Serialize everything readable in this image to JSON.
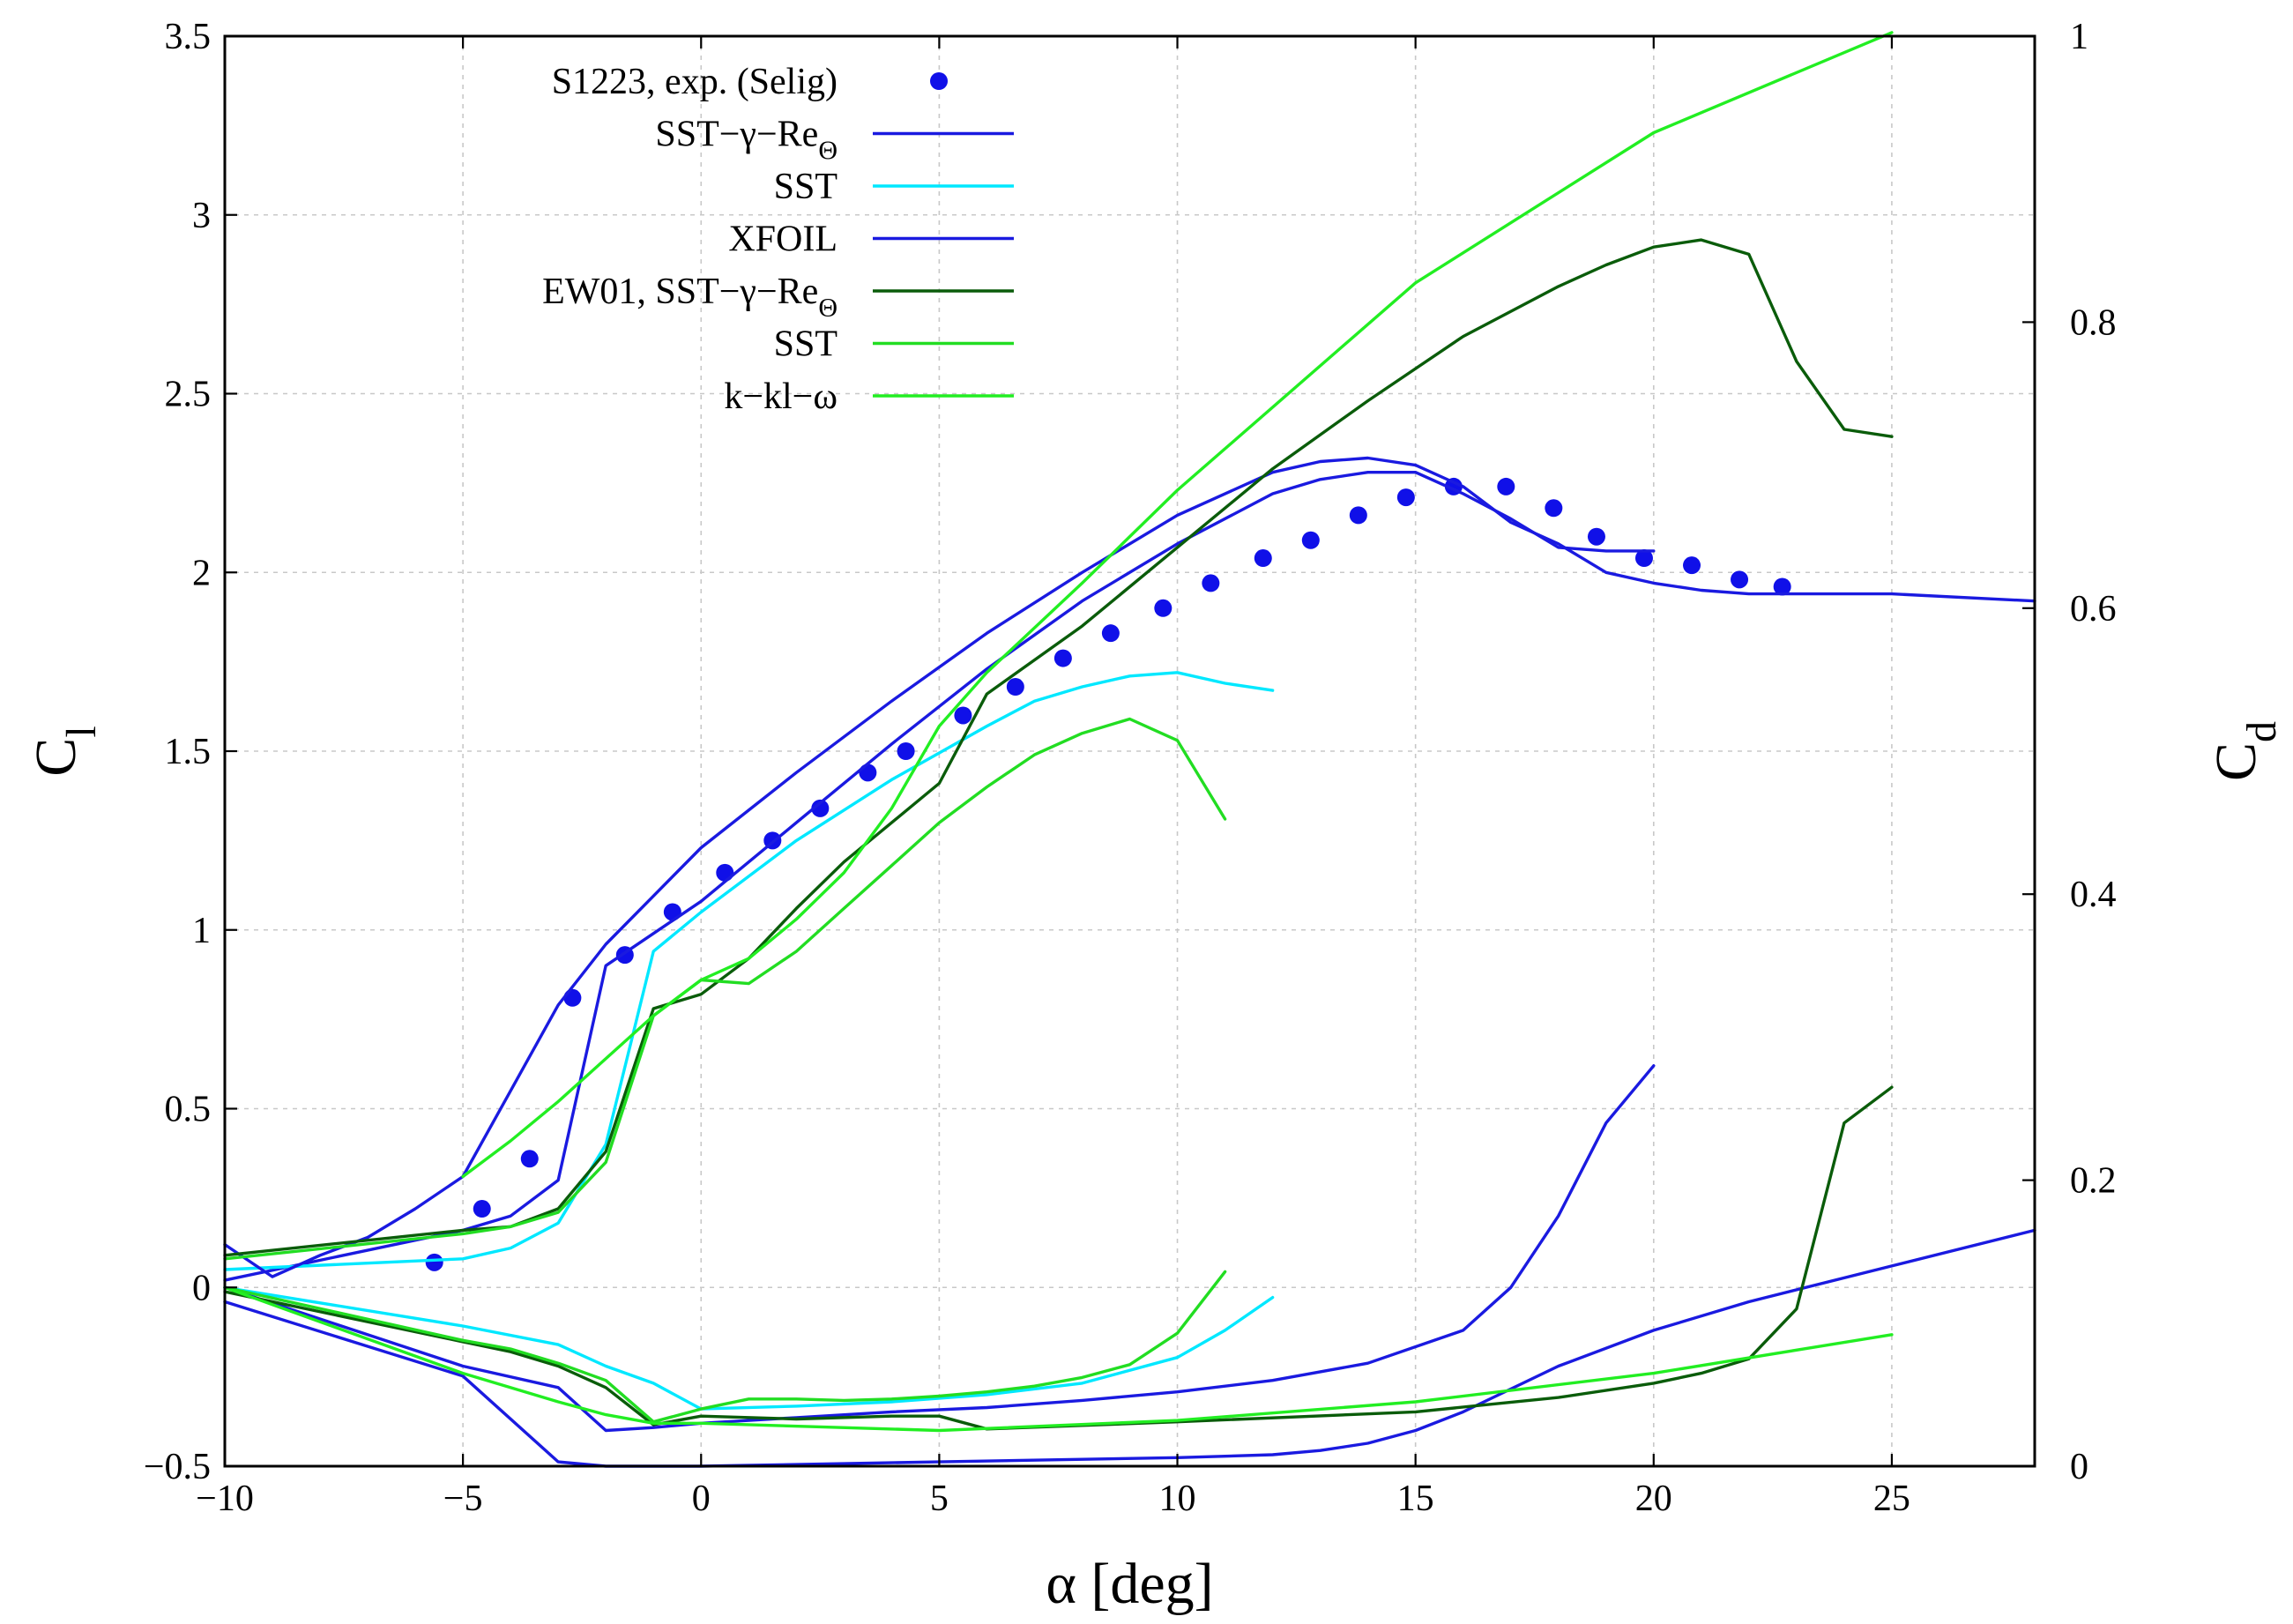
{
  "chart_data": {
    "type": "line",
    "title": "",
    "xlabel": "α [deg]",
    "ylabel": "C",
    "ylabel_sub": "l",
    "y2label": "C",
    "y2label_sub": "d",
    "xlim": [
      -10,
      28
    ],
    "ylim": [
      -0.5,
      3.5
    ],
    "y2lim": [
      0,
      1
    ],
    "grid": true,
    "legend_position": "top-left",
    "x_ticks": [
      "−10",
      "−5",
      "0",
      "5",
      "10",
      "15",
      "20",
      "25"
    ],
    "y_ticks": [
      "−0.5",
      "0",
      "0.5",
      "1",
      "1.5",
      "2",
      "2.5",
      "3",
      "3.5"
    ],
    "y2_ticks": [
      "0",
      "0.2",
      "0.4",
      "0.6",
      "0.8",
      "1"
    ],
    "legend": [
      {
        "key": "exp",
        "label": "S1223, exp. (Selig)",
        "sub": "",
        "color": "#1010e8",
        "marker": "circle"
      },
      {
        "key": "s1223_sstg",
        "label": "SST−γ−Re",
        "sub": "Θ",
        "color": "#1a1ae0",
        "marker": "line"
      },
      {
        "key": "s1223_sst",
        "label": "SST",
        "sub": "",
        "color": "#00e8ff",
        "marker": "line"
      },
      {
        "key": "xfoil",
        "label": "XFOIL",
        "sub": "",
        "color": "#1a1ae0",
        "marker": "line"
      },
      {
        "key": "ew_sstg",
        "label": "EW01, SST−γ−Re",
        "sub": "Θ",
        "color": "#0a5c0a",
        "marker": "line"
      },
      {
        "key": "ew_sst",
        "label": "SST",
        "sub": "",
        "color": "#22dd22",
        "marker": "line"
      },
      {
        "key": "ew_kkl",
        "label": "k−kl−ω",
        "sub": "",
        "color": "#22ee22",
        "marker": "line"
      }
    ],
    "series": [
      {
        "name": "S1223, exp. (Selig) — C_l",
        "axis": "left",
        "style": "points",
        "color": "#1010e8",
        "x": [
          -5.6,
          -4.6,
          -3.6,
          -2.7,
          -1.6,
          -0.6,
          0.5,
          1.5,
          2.5,
          3.5,
          4.3,
          5.5,
          6.6,
          7.6,
          8.6,
          9.7,
          10.7,
          11.8,
          12.8,
          13.8,
          14.8,
          15.8,
          16.9,
          17.9,
          18.8,
          19.8,
          20.8,
          21.8,
          22.7
        ],
        "values": [
          0.07,
          0.22,
          0.36,
          0.81,
          0.93,
          1.05,
          1.16,
          1.25,
          1.34,
          1.44,
          1.5,
          1.6,
          1.68,
          1.76,
          1.83,
          1.9,
          1.97,
          2.04,
          2.09,
          2.16,
          2.21,
          2.24,
          2.24,
          2.18,
          2.1,
          2.04,
          2.02,
          1.98,
          1.96
        ]
      },
      {
        "name": "S1223 SST−γ−ReΘ — C_l",
        "axis": "left",
        "style": "line",
        "color": "#1a1ae0",
        "x": [
          -10,
          -5,
          -4,
          -3,
          -2,
          0,
          2,
          4,
          6,
          8,
          10,
          12,
          13,
          14,
          15,
          16,
          17,
          18,
          19,
          20
        ],
        "values": [
          0.02,
          0.16,
          0.2,
          0.3,
          0.9,
          1.08,
          1.3,
          1.52,
          1.73,
          1.92,
          2.08,
          2.22,
          2.26,
          2.28,
          2.28,
          2.22,
          2.15,
          2.07,
          2.06,
          2.06
        ]
      },
      {
        "name": "S1223 SST — C_l",
        "axis": "left",
        "style": "line",
        "color": "#00e8ff",
        "x": [
          -10,
          -5,
          -4,
          -3,
          -2,
          -1,
          0,
          2,
          4,
          6,
          7,
          8,
          9,
          10,
          11,
          12
        ],
        "values": [
          0.05,
          0.08,
          0.11,
          0.18,
          0.4,
          0.94,
          1.05,
          1.25,
          1.42,
          1.57,
          1.64,
          1.68,
          1.71,
          1.72,
          1.69,
          1.67
        ]
      },
      {
        "name": "XFOIL — C_l",
        "axis": "left",
        "style": "line",
        "color": "#1a1ae0",
        "x": [
          -10,
          -9,
          -8,
          -7,
          -6,
          -5,
          -4,
          -3,
          -2,
          0,
          2,
          4,
          6,
          8,
          10,
          12,
          13,
          14,
          15,
          16,
          17,
          18,
          19,
          20,
          21,
          22,
          25,
          28
        ],
        "values": [
          0.12,
          0.03,
          0.09,
          0.14,
          0.22,
          0.31,
          0.55,
          0.79,
          0.96,
          1.23,
          1.44,
          1.64,
          1.83,
          2.0,
          2.16,
          2.28,
          2.31,
          2.32,
          2.3,
          2.24,
          2.14,
          2.08,
          2.0,
          1.97,
          1.95,
          1.94,
          1.94,
          1.92
        ]
      },
      {
        "name": "EW01 SST−γ−ReΘ — C_l",
        "axis": "left",
        "style": "line",
        "color": "#0a5c0a",
        "x": [
          -10,
          -5,
          -4,
          -3,
          -2,
          -1,
          0,
          1,
          2,
          3,
          4,
          5,
          6,
          8,
          10,
          12,
          14,
          16,
          18,
          19,
          20,
          21,
          22,
          23,
          24,
          25
        ],
        "values": [
          0.09,
          0.16,
          0.17,
          0.22,
          0.38,
          0.78,
          0.82,
          0.92,
          1.06,
          1.19,
          1.3,
          1.41,
          1.66,
          1.85,
          2.07,
          2.29,
          2.48,
          2.66,
          2.8,
          2.86,
          2.91,
          2.93,
          2.89,
          2.59,
          2.4,
          2.38
        ]
      },
      {
        "name": "EW01 SST — C_l",
        "axis": "left",
        "style": "line",
        "color": "#22dd22",
        "x": [
          -10,
          -5,
          -4,
          -3,
          -2,
          -1,
          0,
          1,
          2,
          3,
          4,
          5,
          6,
          7,
          8,
          9,
          10,
          11
        ],
        "values": [
          0.08,
          0.15,
          0.17,
          0.21,
          0.35,
          0.76,
          0.86,
          0.85,
          0.94,
          1.06,
          1.18,
          1.3,
          1.4,
          1.49,
          1.55,
          1.59,
          1.53,
          1.31
        ]
      },
      {
        "name": "EW01 k−kl−ω — C_l",
        "axis": "left",
        "style": "line",
        "color": "#22ee22",
        "x": [
          -5,
          -4,
          -3,
          -2,
          -1,
          0,
          1,
          2,
          3,
          4,
          5,
          6,
          8,
          10,
          15,
          20,
          25
        ],
        "values": [
          0.31,
          0.41,
          0.52,
          0.64,
          0.76,
          0.86,
          0.92,
          1.03,
          1.16,
          1.34,
          1.57,
          1.72,
          1.97,
          2.23,
          2.81,
          3.23,
          3.51
        ]
      },
      {
        "name": "S1223 SST−γ−ReΘ — C_d",
        "axis": "right",
        "style": "line",
        "color": "#1a1ae0",
        "x": [
          -10,
          -5,
          -3,
          -2,
          -1,
          0,
          2,
          4,
          6,
          8,
          10,
          12,
          14,
          16,
          17,
          18,
          19,
          20
        ],
        "values": [
          0.125,
          0.07,
          0.055,
          0.025,
          0.027,
          0.03,
          0.034,
          0.038,
          0.041,
          0.046,
          0.052,
          0.06,
          0.072,
          0.095,
          0.125,
          0.175,
          0.24,
          0.28
        ]
      },
      {
        "name": "S1223 SST — C_d",
        "axis": "right",
        "style": "line",
        "color": "#00e8ff",
        "x": [
          -10,
          -5,
          -3,
          -2,
          -1,
          0,
          2,
          4,
          6,
          8,
          10,
          11,
          12
        ],
        "values": [
          0.125,
          0.098,
          0.085,
          0.07,
          0.058,
          0.04,
          0.042,
          0.045,
          0.05,
          0.058,
          0.076,
          0.095,
          0.118
        ]
      },
      {
        "name": "XFOIL — C_d",
        "axis": "right",
        "style": "line",
        "color": "#1a1ae0",
        "x": [
          -10,
          -5,
          -3,
          -2,
          0,
          5,
          10,
          12,
          13,
          14,
          15,
          16,
          18,
          20,
          22,
          25,
          28
        ],
        "values": [
          0.115,
          0.063,
          0.003,
          0.0,
          0.0,
          0.003,
          0.006,
          0.008,
          0.011,
          0.016,
          0.025,
          0.038,
          0.07,
          0.095,
          0.115,
          0.14,
          0.165
        ]
      },
      {
        "name": "EW01 SST−γ−ReΘ — C_d",
        "axis": "right",
        "style": "line",
        "color": "#0a5c0a",
        "x": [
          -10,
          -5,
          -4,
          -3,
          -2,
          -1,
          0,
          2,
          4,
          5,
          6,
          10,
          15,
          18,
          20,
          21,
          22,
          23,
          24,
          25
        ],
        "values": [
          0.122,
          0.087,
          0.08,
          0.07,
          0.055,
          0.029,
          0.035,
          0.033,
          0.035,
          0.035,
          0.026,
          0.031,
          0.038,
          0.048,
          0.058,
          0.065,
          0.075,
          0.11,
          0.24,
          0.265
        ]
      },
      {
        "name": "EW01 SST — C_d",
        "axis": "right",
        "style": "line",
        "color": "#22dd22",
        "x": [
          -10,
          -5,
          -4,
          -3,
          -2,
          -1,
          0,
          1,
          2,
          3,
          4,
          5,
          6,
          7,
          8,
          9,
          10,
          11
        ],
        "values": [
          0.125,
          0.088,
          0.082,
          0.072,
          0.06,
          0.031,
          0.04,
          0.047,
          0.047,
          0.046,
          0.047,
          0.049,
          0.052,
          0.056,
          0.062,
          0.071,
          0.093,
          0.136
        ]
      },
      {
        "name": "EW01 k−kl−ω — C_d",
        "axis": "right",
        "style": "line",
        "color": "#22ee22",
        "x": [
          -10,
          -5,
          -3,
          -2,
          -1,
          0,
          5,
          10,
          15,
          20,
          25
        ],
        "values": [
          0.125,
          0.065,
          0.045,
          0.036,
          0.03,
          0.03,
          0.025,
          0.032,
          0.045,
          0.065,
          0.092
        ]
      }
    ]
  }
}
